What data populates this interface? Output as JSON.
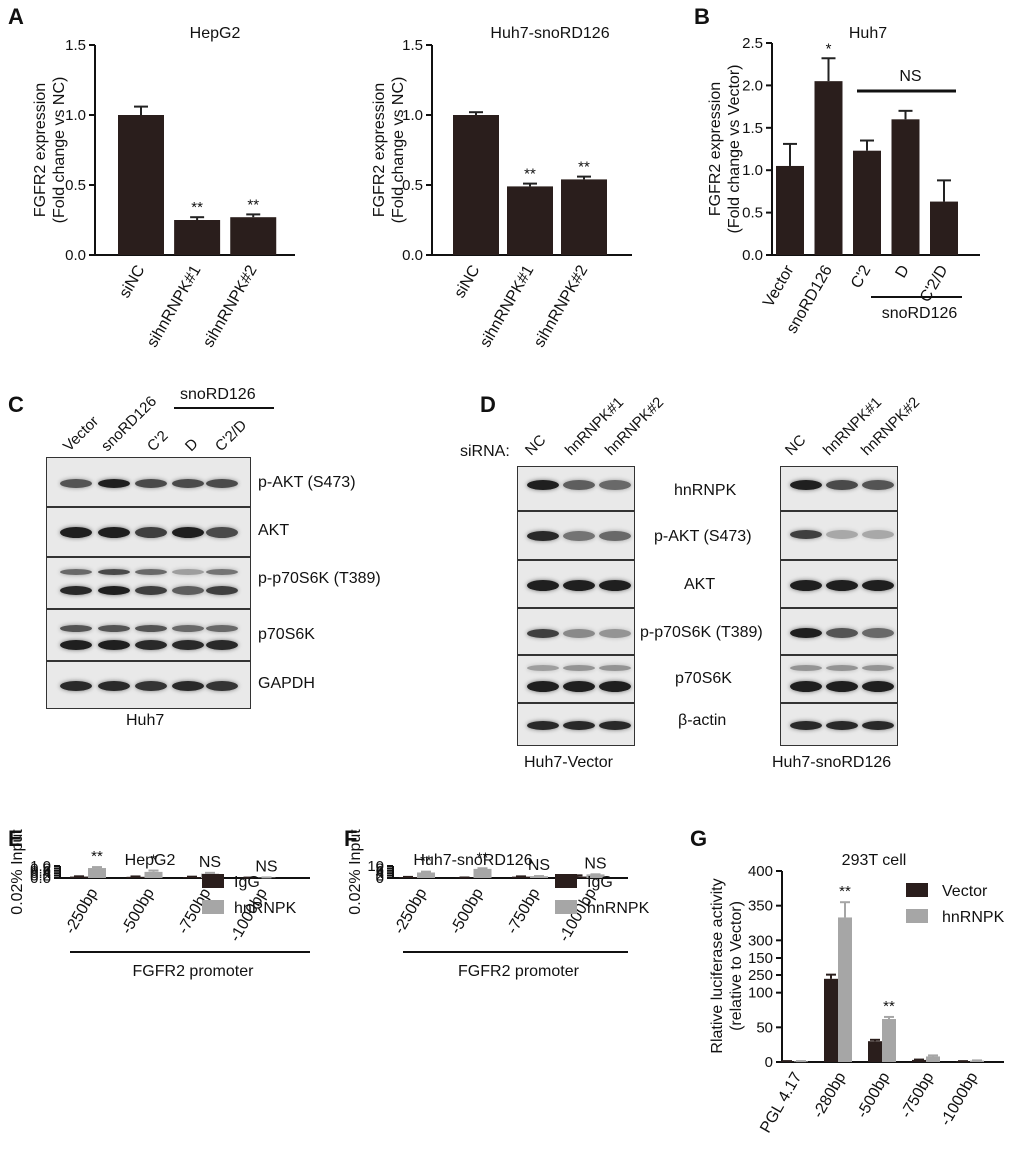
{
  "panels": {
    "A": "A",
    "B": "B",
    "C": "C",
    "D": "D",
    "E": "E",
    "F": "F",
    "G": "G"
  },
  "chart_data": [
    {
      "id": "A1",
      "type": "bar",
      "title": "HepG2",
      "ylabel_line1": "FGFR2 expression",
      "ylabel_line2": "(Fold change vs NC)",
      "categories": [
        "siNC",
        "sihnRNPK#1",
        "sihnRNPK#2"
      ],
      "values": [
        1.0,
        0.25,
        0.27
      ],
      "errors": [
        0.06,
        0.02,
        0.02
      ],
      "sig": [
        "",
        "**",
        "**"
      ],
      "ylim": [
        0,
        1.5
      ],
      "yticks": [
        "0.0",
        "0.5",
        "1.0",
        "1.5"
      ],
      "ytick_values": [
        0,
        0.5,
        1.0,
        1.5
      ]
    },
    {
      "id": "A2",
      "type": "bar",
      "title": "Huh7-snoRD126",
      "ylabel_line1": "FGFR2 expression",
      "ylabel_line2": "(Fold change vs NC)",
      "categories": [
        "siNC",
        "sihnRNPK#1",
        "sihnRNPK#2"
      ],
      "values": [
        1.0,
        0.49,
        0.54
      ],
      "errors": [
        0.02,
        0.02,
        0.02
      ],
      "sig": [
        "",
        "**",
        "**"
      ],
      "ylim": [
        0,
        1.5
      ],
      "yticks": [
        "0.0",
        "0.5",
        "1.0",
        "1.5"
      ],
      "ytick_values": [
        0,
        0.5,
        1.0,
        1.5
      ]
    },
    {
      "id": "B",
      "type": "bar",
      "title": "Huh7",
      "ylabel_line1": "FGFR2 expression",
      "ylabel_line2": "(Fold change vs Vector)",
      "categories": [
        "Vector",
        "snoRD126",
        "C'2",
        "D",
        "C'2/D"
      ],
      "values": [
        1.05,
        2.05,
        1.23,
        1.6,
        0.63
      ],
      "errors": [
        0.26,
        0.27,
        0.12,
        0.1,
        0.25
      ],
      "sig": [
        "",
        "*",
        "",
        "",
        ""
      ],
      "bracket_label": "NS",
      "group_label": "snoRD126",
      "ylim": [
        0,
        2.5
      ],
      "yticks": [
        "0.0",
        "0.5",
        "1.0",
        "1.5",
        "2.0",
        "2.5"
      ],
      "ytick_values": [
        0,
        0.5,
        1.0,
        1.5,
        2.0,
        2.5
      ]
    },
    {
      "id": "E",
      "type": "bar",
      "title": "HepG2",
      "ylabel": "0.02% Input",
      "categories": [
        "-250bp",
        "-500bp",
        "-750bp",
        "-1000bp"
      ],
      "series": [
        {
          "name": "IgG",
          "values": [
            0.12,
            0.1,
            0.08,
            0.03
          ],
          "errors": [
            0.02,
            0.03,
            0.03,
            0.005
          ],
          "color": "#2a1e1c"
        },
        {
          "name": "hnRNPK",
          "values": [
            0.83,
            0.51,
            0.36,
            0.04
          ],
          "errors": [
            0.08,
            0.11,
            0.07,
            0.01
          ],
          "color": "#a6a6a6"
        }
      ],
      "sig": [
        "**",
        "*",
        "NS",
        "NS"
      ],
      "xlabel": "FGFR2 promoter",
      "ylim": [
        0,
        1.0
      ],
      "yticks": [
        "0.0",
        "0.2",
        "0.4",
        "0.6",
        "0.8",
        "1.0"
      ],
      "ytick_values": [
        0,
        0.2,
        0.4,
        0.6,
        0.8,
        1.0
      ]
    },
    {
      "id": "F",
      "type": "bar",
      "title": "Huh7-snoRD126",
      "ylabel": "0.02% Input",
      "categories": [
        "-250bp",
        "-500bp",
        "-750bp",
        "-1000bp"
      ],
      "series": [
        {
          "name": "IgG",
          "values": [
            0.8,
            0.35,
            1.15,
            1.2
          ],
          "errors": [
            0.12,
            0.08,
            0.2,
            1.0
          ],
          "color": "#2a1e1c"
        },
        {
          "name": "hnRNPK",
          "values": [
            4.6,
            7.6,
            1.55,
            3.0
          ],
          "errors": [
            0.7,
            0.5,
            0.08,
            0.08
          ],
          "color": "#a6a6a6"
        }
      ],
      "sig": [
        "**",
        "**",
        "NS",
        "NS"
      ],
      "xlabel": "FGFR2 promoter",
      "ylim": [
        0,
        10
      ],
      "yticks": [
        "0",
        "2",
        "4",
        "6",
        "8",
        "10"
      ],
      "ytick_values": [
        0,
        2,
        4,
        6,
        8,
        10
      ]
    },
    {
      "id": "G",
      "type": "bar",
      "title": "293T cell",
      "ylabel_line1": "Rlative luciferase activity",
      "ylabel_line2": "(relative to Vector)",
      "categories": [
        "PGL 4.17",
        "-280bp",
        "-500bp",
        "-750bp",
        "-1000bp"
      ],
      "series": [
        {
          "name": "Vector",
          "values": [
            1,
            120,
            30,
            3,
            1
          ],
          "errors": [
            0.3,
            6,
            2,
            0.5,
            0.2
          ],
          "color": "#2a1e1c"
        },
        {
          "name": "hnRNPK",
          "values": [
            1,
            333,
            62,
            8,
            2
          ],
          "errors": [
            0.3,
            22,
            3,
            1.5,
            0.3
          ],
          "color": "#a6a6a6"
        }
      ],
      "sig": [
        "",
        "**",
        "**",
        "",
        ""
      ],
      "broken_axis": true,
      "yticks_low": [
        "0",
        "50",
        "100",
        "150"
      ],
      "ytick_low_values": [
        0,
        50,
        100,
        150
      ],
      "yticks_high": [
        "250",
        "300",
        "350",
        "400"
      ],
      "ytick_high_values": [
        250,
        300,
        350,
        400
      ]
    }
  ],
  "blots": {
    "C": {
      "lanes": [
        "Vector",
        "snoRD126",
        "C'2",
        "D",
        "C'2/D"
      ],
      "group_label": "snoRD126",
      "rows": [
        "p-AKT (S473)",
        "AKT",
        "p-p70S6K (T389)",
        "p70S6K",
        "GAPDH"
      ],
      "cell_label": "Huh7"
    },
    "D": {
      "siRNA_label": "siRNA:",
      "lanes": [
        "NC",
        "hnRNPK#1",
        "hnRNPK#2"
      ],
      "rows": [
        "hnRNPK",
        "p-AKT (S473)",
        "AKT",
        "p-p70S6K (T389)",
        "p70S6K",
        "β-actin"
      ],
      "left_label": "Huh7-Vector",
      "right_label": "Huh7-snoRD126"
    }
  }
}
